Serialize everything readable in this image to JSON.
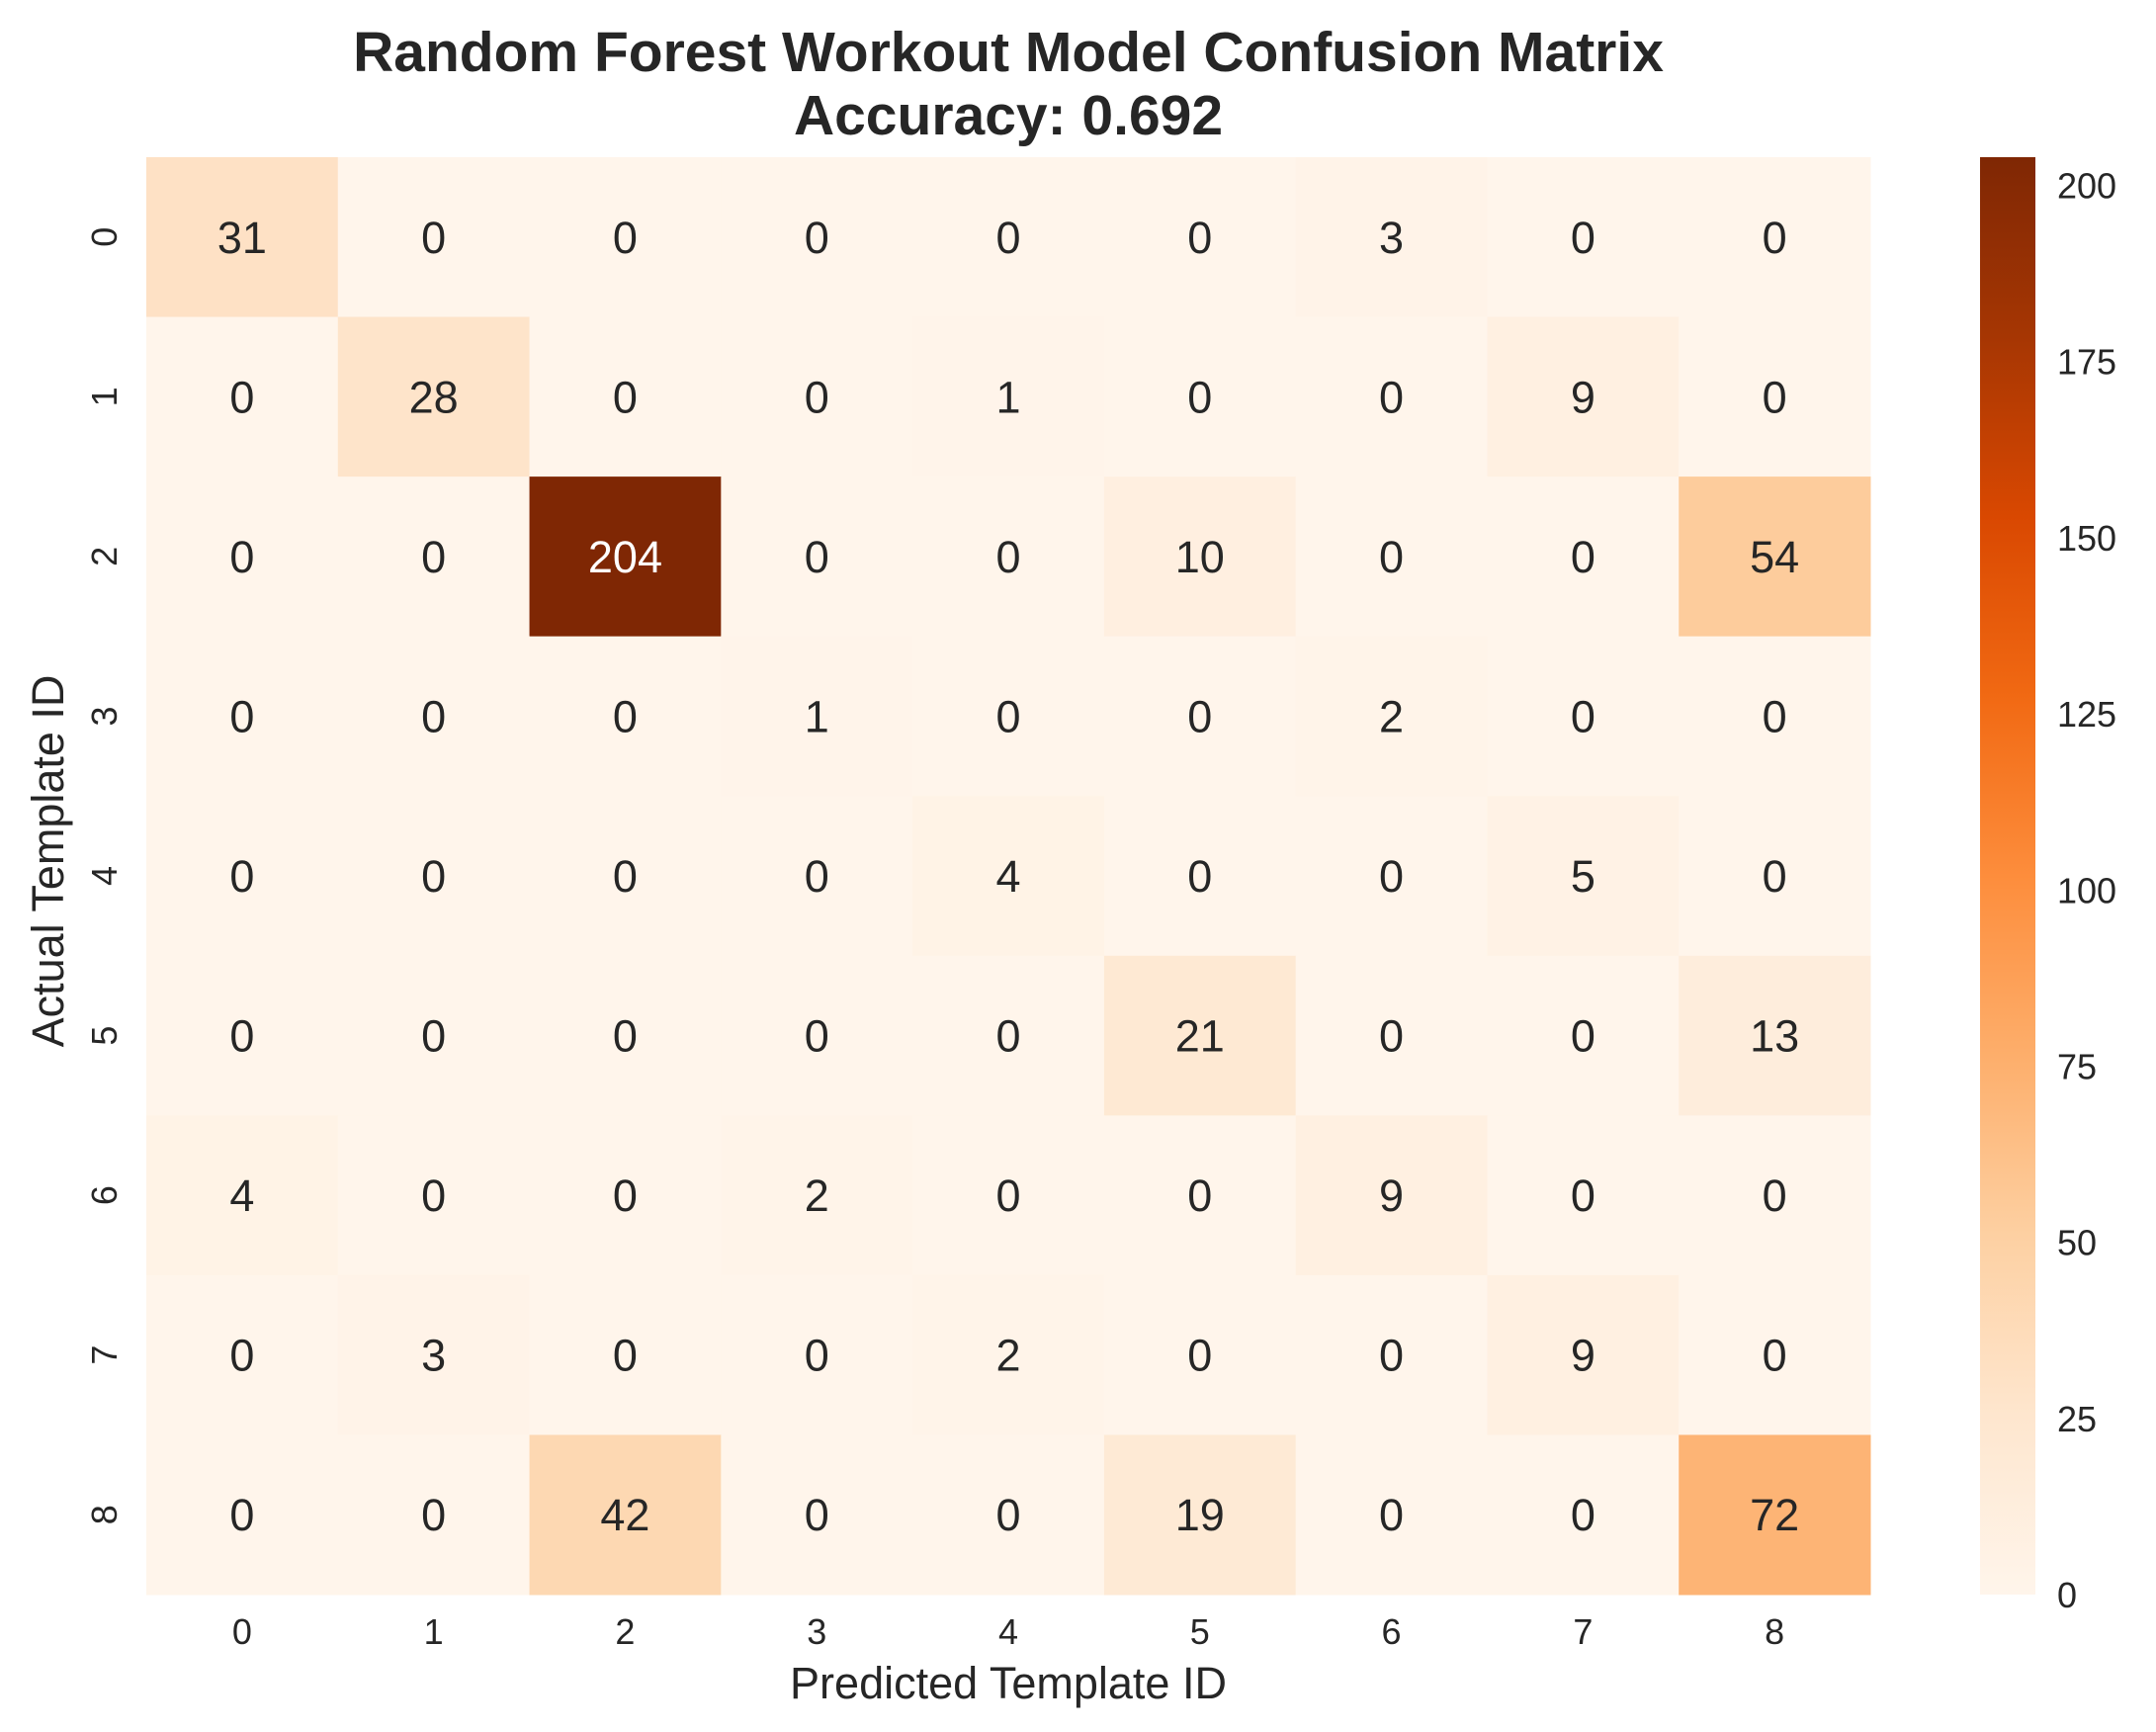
{
  "chart_data": {
    "type": "heatmap",
    "title": "Random Forest Workout Model Confusion Matrix",
    "subtitle": "Accuracy: 0.692",
    "xlabel": "Predicted Template ID",
    "ylabel": "Actual Template ID",
    "x_categories": [
      "0",
      "1",
      "2",
      "3",
      "4",
      "5",
      "6",
      "7",
      "8"
    ],
    "y_categories": [
      "0",
      "1",
      "2",
      "3",
      "4",
      "5",
      "6",
      "7",
      "8"
    ],
    "values": [
      [
        31,
        0,
        0,
        0,
        0,
        0,
        3,
        0,
        0
      ],
      [
        0,
        28,
        0,
        0,
        1,
        0,
        0,
        9,
        0
      ],
      [
        0,
        0,
        204,
        0,
        0,
        10,
        0,
        0,
        54
      ],
      [
        0,
        0,
        0,
        1,
        0,
        0,
        2,
        0,
        0
      ],
      [
        0,
        0,
        0,
        0,
        4,
        0,
        0,
        5,
        0
      ],
      [
        0,
        0,
        0,
        0,
        0,
        21,
        0,
        0,
        13
      ],
      [
        4,
        0,
        0,
        2,
        0,
        0,
        9,
        0,
        0
      ],
      [
        0,
        3,
        0,
        0,
        2,
        0,
        0,
        9,
        0
      ],
      [
        0,
        0,
        42,
        0,
        0,
        19,
        0,
        0,
        72
      ]
    ],
    "colormap": "Oranges",
    "colorbar": {
      "range": [
        0,
        204
      ],
      "ticks": [
        "0",
        "25",
        "50",
        "75",
        "100",
        "125",
        "150",
        "175",
        "200"
      ]
    },
    "grid": false,
    "legend": "colorbar-right"
  }
}
